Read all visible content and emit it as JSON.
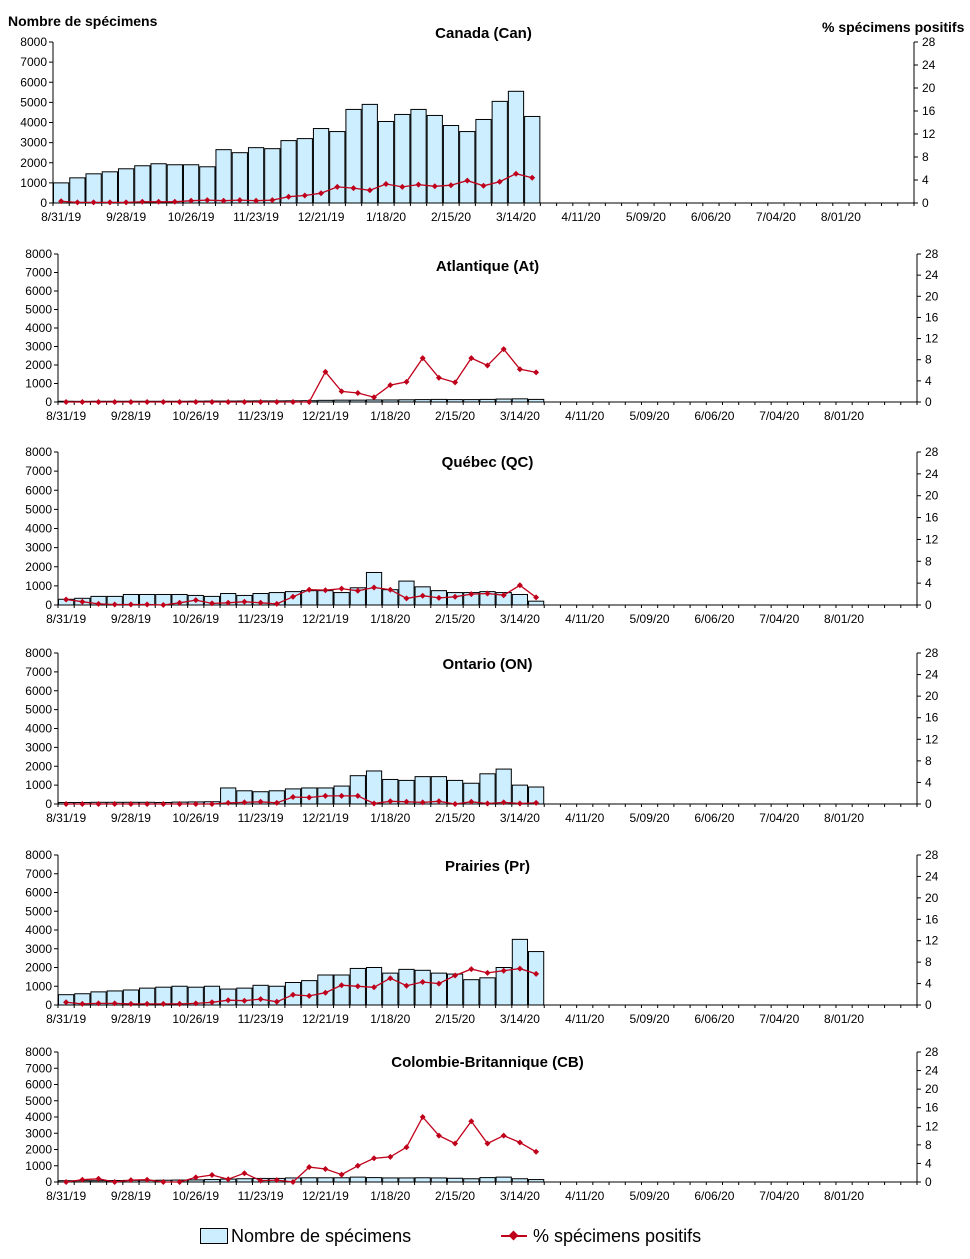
{
  "header": {
    "left_label": "Nombre de spécimens",
    "right_label": "% spécimens positifs"
  },
  "legend": {
    "count_label": "Nombre de spécimens",
    "pct_label": "% spécimens positifs"
  },
  "colors": {
    "bar_fill": "#cceeff",
    "bar_stroke": "#000000",
    "line": "#c0001a"
  },
  "chart_data": [
    {
      "type": "bar",
      "title": "Canada (Can)",
      "ylim": [
        0,
        8000
      ],
      "y2lim": [
        0,
        28
      ],
      "yticks": [
        0,
        1000,
        2000,
        3000,
        4000,
        5000,
        6000,
        7000,
        8000
      ],
      "y2ticks": [
        0,
        4,
        8,
        12,
        16,
        20,
        24,
        28
      ],
      "x_tick_labels": [
        "8/31/19",
        "9/28/19",
        "10/26/19",
        "11/23/19",
        "12/21/19",
        "1/18/20",
        "2/15/20",
        "3/14/20",
        "4/11/20",
        "5/09/20",
        "6/06/20",
        "7/04/20",
        "8/01/20"
      ],
      "series": [
        {
          "name": "Nombre de spécimens",
          "axis": "left",
          "values": [
            1000,
            1250,
            1450,
            1550,
            1700,
            1850,
            1950,
            1900,
            1900,
            1800,
            2650,
            2500,
            2750,
            2700,
            3100,
            3200,
            3700,
            3550,
            4650,
            4900,
            4050,
            4400,
            4650,
            4350,
            3850,
            3550,
            4150,
            5050,
            5550,
            4300
          ]
        },
        {
          "name": "% spécimens positifs",
          "axis": "right",
          "values": [
            0.3,
            0.1,
            0.1,
            0.1,
            0.1,
            0.2,
            0.2,
            0.2,
            0.4,
            0.5,
            0.4,
            0.5,
            0.4,
            0.5,
            1.1,
            1.3,
            1.7,
            2.8,
            2.6,
            2.2,
            3.3,
            2.8,
            3.2,
            2.9,
            3.1,
            3.9,
            3.0,
            3.7,
            5.1,
            4.4
          ]
        }
      ]
    },
    {
      "type": "bar",
      "title": "Atlantique (At)",
      "ylim": [
        0,
        8000
      ],
      "y2lim": [
        0,
        28
      ],
      "yticks": [
        0,
        1000,
        2000,
        3000,
        4000,
        5000,
        6000,
        7000,
        8000
      ],
      "y2ticks": [
        0,
        4,
        8,
        12,
        16,
        20,
        24,
        28
      ],
      "x_tick_labels": [
        "8/31/19",
        "9/28/19",
        "10/26/19",
        "11/23/19",
        "12/21/19",
        "1/18/20",
        "2/15/20",
        "3/14/20",
        "4/11/20",
        "5/09/20",
        "6/06/20",
        "7/04/20",
        "8/01/20"
      ],
      "series": [
        {
          "name": "Nombre de spécimens",
          "axis": "left",
          "values": [
            40,
            35,
            40,
            40,
            40,
            40,
            40,
            40,
            45,
            50,
            50,
            55,
            60,
            60,
            65,
            70,
            90,
            100,
            100,
            110,
            110,
            120,
            130,
            140,
            130,
            130,
            140,
            160,
            170,
            140
          ]
        },
        {
          "name": "% spécimens positifs",
          "axis": "right",
          "values": [
            0,
            0,
            0,
            0,
            0,
            0,
            0,
            0,
            0,
            0,
            0,
            0,
            0,
            0,
            0,
            0,
            5.7,
            2.0,
            1.7,
            0.9,
            3.2,
            3.8,
            8.3,
            4.6,
            3.7,
            8.3,
            6.9,
            10.0,
            6.2,
            5.6
          ]
        }
      ]
    },
    {
      "type": "bar",
      "title": "Québec (QC)",
      "ylim": [
        0,
        8000
      ],
      "y2lim": [
        0,
        28
      ],
      "yticks": [
        0,
        1000,
        2000,
        3000,
        4000,
        5000,
        6000,
        7000,
        8000
      ],
      "y2ticks": [
        0,
        4,
        8,
        12,
        16,
        20,
        24,
        28
      ],
      "x_tick_labels": [
        "8/31/19",
        "9/28/19",
        "10/26/19",
        "11/23/19",
        "12/21/19",
        "1/18/20",
        "2/15/20",
        "3/14/20",
        "4/11/20",
        "5/09/20",
        "6/06/20",
        "7/04/20",
        "8/01/20"
      ],
      "series": [
        {
          "name": "Nombre de spécimens",
          "axis": "left",
          "values": [
            300,
            350,
            450,
            450,
            550,
            550,
            550,
            550,
            500,
            450,
            600,
            500,
            600,
            650,
            700,
            750,
            750,
            650,
            900,
            1700,
            800,
            1250,
            950,
            750,
            650,
            650,
            700,
            650,
            550,
            200
          ]
        },
        {
          "name": "% spécimens positifs",
          "axis": "right",
          "values": [
            1.0,
            0.6,
            0.2,
            0.1,
            0.1,
            0.1,
            0.0,
            0.4,
            0.9,
            0.3,
            0.4,
            0.6,
            0.4,
            0.2,
            1.5,
            2.8,
            2.7,
            3.0,
            2.6,
            3.2,
            2.8,
            1.2,
            1.7,
            1.3,
            1.5,
            2.0,
            2.1,
            1.8,
            3.6,
            1.4
          ]
        }
      ]
    },
    {
      "type": "bar",
      "title": "Ontario (ON)",
      "ylim": [
        0,
        8000
      ],
      "y2lim": [
        0,
        28
      ],
      "yticks": [
        0,
        1000,
        2000,
        3000,
        4000,
        5000,
        6000,
        7000,
        8000
      ],
      "y2ticks": [
        0,
        4,
        8,
        12,
        16,
        20,
        24,
        28
      ],
      "x_tick_labels": [
        "8/31/19",
        "9/28/19",
        "10/26/19",
        "11/23/19",
        "12/21/19",
        "1/18/20",
        "2/15/20",
        "3/14/20",
        "4/11/20",
        "5/09/20",
        "6/06/20",
        "7/04/20",
        "8/01/20"
      ],
      "series": [
        {
          "name": "Nombre de spécimens",
          "axis": "left",
          "values": [
            80,
            80,
            90,
            90,
            90,
            90,
            80,
            100,
            110,
            120,
            850,
            700,
            650,
            700,
            800,
            850,
            850,
            950,
            1500,
            1750,
            1300,
            1250,
            1450,
            1450,
            1250,
            1100,
            1600,
            1850,
            1000,
            900
          ]
        },
        {
          "name": "% spécimens positifs",
          "axis": "right",
          "values": [
            0,
            0,
            0,
            0,
            0,
            0,
            0,
            0,
            0,
            0,
            0.2,
            0.3,
            0.4,
            0.2,
            1.3,
            1.2,
            1.5,
            1.5,
            1.5,
            0.1,
            0.5,
            0.4,
            0.3,
            0.5,
            0.0,
            0.4,
            0.1,
            0.3,
            0.1,
            0.2
          ]
        }
      ]
    },
    {
      "type": "bar",
      "title": "Prairies (Pr)",
      "ylim": [
        0,
        8000
      ],
      "y2lim": [
        0,
        28
      ],
      "yticks": [
        0,
        1000,
        2000,
        3000,
        4000,
        5000,
        6000,
        7000,
        8000
      ],
      "y2ticks": [
        0,
        4,
        8,
        12,
        16,
        20,
        24,
        28
      ],
      "x_tick_labels": [
        "8/31/19",
        "9/28/19",
        "10/26/19",
        "11/23/19",
        "12/21/19",
        "1/18/20",
        "2/15/20",
        "3/14/20",
        "4/11/20",
        "5/09/20",
        "6/06/20",
        "7/04/20",
        "8/01/20"
      ],
      "series": [
        {
          "name": "Nombre de spécimens",
          "axis": "left",
          "values": [
            550,
            600,
            700,
            750,
            800,
            900,
            950,
            1000,
            950,
            1000,
            850,
            900,
            1050,
            1000,
            1200,
            1300,
            1600,
            1600,
            1950,
            2000,
            1700,
            1900,
            1850,
            1700,
            1650,
            1350,
            1450,
            2000,
            3500,
            2850
          ]
        },
        {
          "name": "% spécimens positifs",
          "axis": "right",
          "values": [
            0.5,
            0.2,
            0.3,
            0.3,
            0.2,
            0.2,
            0.2,
            0.2,
            0.3,
            0.5,
            0.9,
            0.8,
            1.1,
            0.6,
            1.9,
            1.7,
            2.3,
            3.7,
            3.5,
            3.3,
            5.0,
            3.6,
            4.3,
            4.0,
            5.5,
            6.7,
            6.0,
            6.4,
            6.8,
            5.8
          ]
        }
      ]
    },
    {
      "type": "bar",
      "title": "Colombie-Britannique (CB)",
      "ylim": [
        0,
        8000
      ],
      "y2lim": [
        0,
        28
      ],
      "yticks": [
        0,
        1000,
        2000,
        3000,
        4000,
        5000,
        6000,
        7000,
        8000
      ],
      "y2ticks": [
        0,
        4,
        8,
        12,
        16,
        20,
        24,
        28
      ],
      "x_tick_labels": [
        "8/31/19",
        "9/28/19",
        "10/26/19",
        "11/23/19",
        "12/21/19",
        "1/18/20",
        "2/15/20",
        "3/14/20",
        "4/11/20",
        "5/09/20",
        "6/06/20",
        "7/04/20",
        "8/01/20"
      ],
      "series": [
        {
          "name": "Nombre de spécimens",
          "axis": "left",
          "values": [
            80,
            80,
            80,
            90,
            100,
            100,
            110,
            120,
            130,
            150,
            180,
            200,
            220,
            220,
            250,
            260,
            260,
            260,
            300,
            270,
            250,
            250,
            260,
            250,
            230,
            200,
            270,
            300,
            200,
            150
          ]
        },
        {
          "name": "% spécimens positifs",
          "axis": "right",
          "values": [
            0.0,
            0.5,
            0.7,
            0.0,
            0.4,
            0.5,
            0.0,
            0.0,
            1.0,
            1.5,
            0.6,
            1.9,
            0.3,
            0.4,
            0.0,
            3.2,
            2.8,
            1.6,
            3.5,
            5.1,
            5.4,
            7.5,
            14.0,
            10.0,
            8.3,
            13.1,
            8.3,
            10.0,
            8.5,
            6.5
          ]
        }
      ]
    }
  ]
}
